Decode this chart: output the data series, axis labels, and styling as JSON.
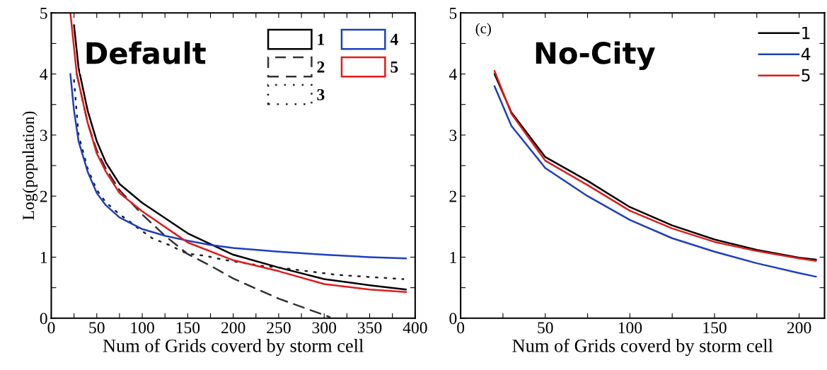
{
  "chart_data": [
    {
      "type": "line",
      "xlabel": "Num of Grids coverd by storm cell",
      "ylabel": "Log(population)",
      "annotations": [
        "Default"
      ],
      "xlim": [
        0,
        400
      ],
      "xticks": [
        0,
        {
          "value": 25,
          "label": null
        },
        50,
        {
          "value": 75,
          "label": null
        },
        100,
        {
          "value": 125,
          "label": null
        },
        150,
        {
          "value": 175,
          "label": null
        },
        200,
        {
          "value": 225,
          "label": null
        },
        250,
        {
          "value": 275,
          "label": null
        },
        300,
        {
          "value": 325,
          "label": null
        },
        350,
        {
          "value": 375,
          "label": null
        },
        400
      ],
      "ylim": [
        0,
        5
      ],
      "yticks": [
        0,
        {
          "value": 0.5,
          "label": null
        },
        1,
        {
          "value": 1.5,
          "label": null
        },
        2,
        {
          "value": 2.5,
          "label": null
        },
        3,
        {
          "value": 3.5,
          "label": null
        },
        4,
        {
          "value": 4.5,
          "label": null
        },
        5
      ],
      "grid": false,
      "legend": "top right",
      "marker": "none",
      "series": [
        {
          "name": "1",
          "color": "#000000",
          "line_style": "solid",
          "x": [
            25,
            30,
            40,
            50,
            60,
            75,
            100,
            150,
            200,
            250,
            300,
            350,
            390
          ],
          "values": [
            4.8,
            4.1,
            3.4,
            2.9,
            2.55,
            2.2,
            1.89,
            1.39,
            1.04,
            0.83,
            0.64,
            0.54,
            0.47
          ]
        },
        {
          "name": "2",
          "color": "#333333",
          "line_style": "dashed",
          "x": [
            28,
            40,
            50,
            60,
            75,
            100,
            125,
            150,
            175,
            200,
            250,
            306
          ],
          "values": [
            4.0,
            3.2,
            2.75,
            2.45,
            2.1,
            1.7,
            1.35,
            1.05,
            0.86,
            0.65,
            0.32,
            0.02
          ]
        },
        {
          "name": "3",
          "color": "#222222",
          "line_style": "dotted",
          "x": [
            25,
            30,
            40,
            50,
            60,
            75,
            85,
            93,
            111,
            131,
            149,
            170,
            188,
            230,
            250,
            314,
            387
          ],
          "values": [
            3.9,
            3.0,
            2.45,
            2.1,
            1.9,
            1.7,
            1.6,
            1.5,
            1.31,
            1.19,
            1.06,
            1.02,
            0.96,
            0.86,
            0.83,
            0.71,
            0.64
          ]
        },
        {
          "name": "4",
          "color": "#1f3fbf",
          "line_style": "solid",
          "x": [
            21,
            25,
            30,
            40,
            50,
            60,
            75,
            100,
            125,
            150,
            175,
            200,
            250,
            300,
            350,
            390
          ],
          "values": [
            4.0,
            3.4,
            2.9,
            2.4,
            2.05,
            1.85,
            1.65,
            1.46,
            1.35,
            1.27,
            1.2,
            1.15,
            1.09,
            1.04,
            1.0,
            0.98
          ]
        },
        {
          "name": "5",
          "color": "#e21b1b",
          "line_style": "solid",
          "x": [
            21,
            28,
            40,
            50,
            60,
            75,
            100,
            150,
            200,
            250,
            300,
            350,
            390
          ],
          "values": [
            5.0,
            4.0,
            3.2,
            2.7,
            2.4,
            2.05,
            1.75,
            1.24,
            0.95,
            0.77,
            0.56,
            0.47,
            0.43
          ]
        }
      ]
    },
    {
      "type": "line",
      "xlabel": "Num of Grids coverd by storm cell",
      "annotations": [
        "(c)",
        "No-City"
      ],
      "xlim": [
        0,
        215
      ],
      "xticks": [
        0,
        {
          "value": 25,
          "label": null
        },
        50,
        {
          "value": 75,
          "label": null
        },
        100,
        {
          "value": 125,
          "label": null
        },
        150,
        {
          "value": 175,
          "label": null
        },
        200
      ],
      "ylim": [
        0,
        5
      ],
      "yticks": [
        0,
        {
          "value": 0.5,
          "label": null
        },
        1,
        {
          "value": 1.5,
          "label": null
        },
        2,
        {
          "value": 2.5,
          "label": null
        },
        3,
        {
          "value": 3.5,
          "label": null
        },
        4,
        {
          "value": 4.5,
          "label": null
        },
        5
      ],
      "grid": false,
      "legend": "top right",
      "marker": "none",
      "series": [
        {
          "name": "1",
          "color": "#000000",
          "line_style": "solid",
          "x": [
            20,
            30,
            50,
            75,
            100,
            125,
            150,
            175,
            200,
            210
          ],
          "values": [
            4.0,
            3.37,
            2.64,
            2.25,
            1.82,
            1.52,
            1.29,
            1.12,
            0.99,
            0.96
          ]
        },
        {
          "name": "4",
          "color": "#1f3fbf",
          "line_style": "solid",
          "x": [
            20,
            30,
            50,
            75,
            100,
            125,
            150,
            175,
            200,
            210
          ],
          "values": [
            3.8,
            3.15,
            2.46,
            2.0,
            1.61,
            1.31,
            1.09,
            0.9,
            0.74,
            0.68
          ]
        },
        {
          "name": "5",
          "color": "#e21b1b",
          "line_style": "solid",
          "x": [
            20,
            30,
            50,
            75,
            100,
            125,
            150,
            175,
            200,
            210
          ],
          "values": [
            4.05,
            3.35,
            2.58,
            2.18,
            1.76,
            1.47,
            1.25,
            1.1,
            0.98,
            0.94
          ]
        }
      ]
    }
  ]
}
